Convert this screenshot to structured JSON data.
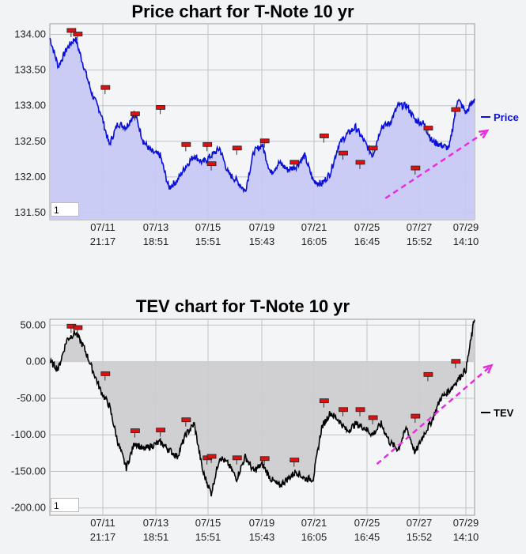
{
  "chart_data": [
    {
      "type": "area",
      "title": "Price chart for T-Note 10 yr",
      "legend": "Price",
      "legend_position": "right",
      "color": "#0b10d8",
      "fill": "#c7c9f4",
      "ylim": [
        131.4,
        134.15
      ],
      "y_ticks": [
        "134.00",
        "133.50",
        "133.00",
        "132.50",
        "132.00",
        "131.50"
      ],
      "y_tick_values": [
        134.0,
        133.5,
        133.0,
        132.5,
        132.0,
        131.5
      ],
      "x_ticks": [
        [
          "07/11",
          "21:17"
        ],
        [
          "07/13",
          "18:51"
        ],
        [
          "07/15",
          "15:51"
        ],
        [
          "07/19",
          "15:43"
        ],
        [
          "07/21",
          "16:05"
        ],
        [
          "07/25",
          "16:45"
        ],
        [
          "07/27",
          "15:52"
        ],
        [
          "07/29",
          "14:10"
        ]
      ],
      "x": [
        0,
        0.02,
        0.04,
        0.06,
        0.08,
        0.1,
        0.12,
        0.14,
        0.16,
        0.18,
        0.2,
        0.22,
        0.24,
        0.26,
        0.28,
        0.3,
        0.32,
        0.34,
        0.36,
        0.38,
        0.4,
        0.42,
        0.44,
        0.46,
        0.48,
        0.5,
        0.52,
        0.54,
        0.56,
        0.58,
        0.6,
        0.62,
        0.64,
        0.66,
        0.68,
        0.7,
        0.72,
        0.74,
        0.76,
        0.78,
        0.8,
        0.82,
        0.84,
        0.86,
        0.88,
        0.9,
        0.92,
        0.94,
        0.96,
        0.98,
        1.0
      ],
      "values": [
        133.95,
        133.55,
        133.8,
        133.95,
        133.55,
        133.15,
        132.9,
        132.45,
        132.75,
        132.7,
        132.9,
        132.5,
        132.35,
        132.3,
        131.85,
        131.95,
        132.15,
        132.3,
        132.2,
        132.3,
        132.4,
        132.05,
        131.95,
        131.8,
        132.35,
        132.45,
        132.05,
        132.2,
        132.1,
        132.15,
        132.3,
        131.95,
        131.9,
        132.05,
        132.45,
        132.6,
        132.7,
        132.5,
        132.3,
        132.7,
        132.75,
        133.0,
        133.0,
        132.8,
        132.75,
        132.5,
        132.45,
        132.4,
        133.1,
        132.9,
        133.1
      ],
      "markers_x": [
        0.05,
        0.065,
        0.13,
        0.2,
        0.26,
        0.32,
        0.37,
        0.38,
        0.44,
        0.505,
        0.575,
        0.645,
        0.69,
        0.73,
        0.76,
        0.86,
        0.89,
        0.955
      ],
      "markers_y": [
        134.05,
        134.0,
        133.25,
        132.88,
        132.97,
        132.45,
        132.45,
        132.18,
        132.4,
        132.5,
        132.2,
        132.57,
        132.33,
        132.2,
        132.4,
        132.12,
        132.68,
        132.94
      ],
      "trend": {
        "x": [
          0.79,
          1.03
        ],
        "y": [
          131.7,
          132.65
        ]
      }
    },
    {
      "type": "area",
      "title": "TEV chart for T-Note 10 yr",
      "legend": "TEV",
      "legend_position": "right",
      "color": "#000000",
      "fill": "#cdced0",
      "ylim": [
        -210,
        58
      ],
      "y_ticks": [
        "50.00",
        "0.00",
        "-50.00",
        "-100.00",
        "-150.00",
        "-200.00"
      ],
      "y_tick_values": [
        50,
        0,
        -50,
        -100,
        -150,
        -200
      ],
      "x_ticks": [
        [
          "07/11",
          "21:17"
        ],
        [
          "07/13",
          "18:51"
        ],
        [
          "07/15",
          "15:51"
        ],
        [
          "07/19",
          "15:43"
        ],
        [
          "07/21",
          "16:05"
        ],
        [
          "07/25",
          "16:45"
        ],
        [
          "07/27",
          "15:52"
        ],
        [
          "07/29",
          "14:10"
        ]
      ],
      "x": [
        0,
        0.02,
        0.04,
        0.06,
        0.08,
        0.1,
        0.12,
        0.14,
        0.16,
        0.18,
        0.2,
        0.22,
        0.24,
        0.26,
        0.28,
        0.3,
        0.32,
        0.34,
        0.36,
        0.38,
        0.4,
        0.42,
        0.44,
        0.46,
        0.48,
        0.5,
        0.52,
        0.54,
        0.56,
        0.58,
        0.6,
        0.62,
        0.64,
        0.66,
        0.68,
        0.7,
        0.72,
        0.74,
        0.76,
        0.78,
        0.8,
        0.82,
        0.84,
        0.86,
        0.88,
        0.9,
        0.92,
        0.94,
        0.96,
        0.98,
        1.0
      ],
      "values": [
        0,
        -10,
        30,
        40,
        20,
        -10,
        -40,
        -60,
        -110,
        -145,
        -110,
        -120,
        -115,
        -110,
        -120,
        -130,
        -100,
        -85,
        -150,
        -180,
        -130,
        -140,
        -160,
        -130,
        -150,
        -140,
        -160,
        -170,
        -160,
        -150,
        -160,
        -160,
        -90,
        -70,
        -80,
        -95,
        -85,
        -90,
        -100,
        -85,
        -110,
        -120,
        -90,
        -125,
        -100,
        -80,
        -50,
        -40,
        -25,
        -10,
        60
      ],
      "markers_x": [
        0.05,
        0.065,
        0.13,
        0.2,
        0.26,
        0.32,
        0.37,
        0.38,
        0.44,
        0.505,
        0.575,
        0.645,
        0.69,
        0.73,
        0.76,
        0.86,
        0.89,
        0.955
      ],
      "markers_y": [
        48,
        46,
        -17,
        -95,
        -94,
        -80,
        -132,
        -130,
        -132,
        -133,
        -135,
        -54,
        -66,
        -66,
        -77,
        -75,
        -18,
        0
      ],
      "trend": {
        "x": [
          0.77,
          1.04
        ],
        "y": [
          -140,
          -5
        ]
      }
    }
  ],
  "panels": [
    {
      "zoom_value": "1"
    },
    {
      "zoom_value": "1"
    }
  ]
}
